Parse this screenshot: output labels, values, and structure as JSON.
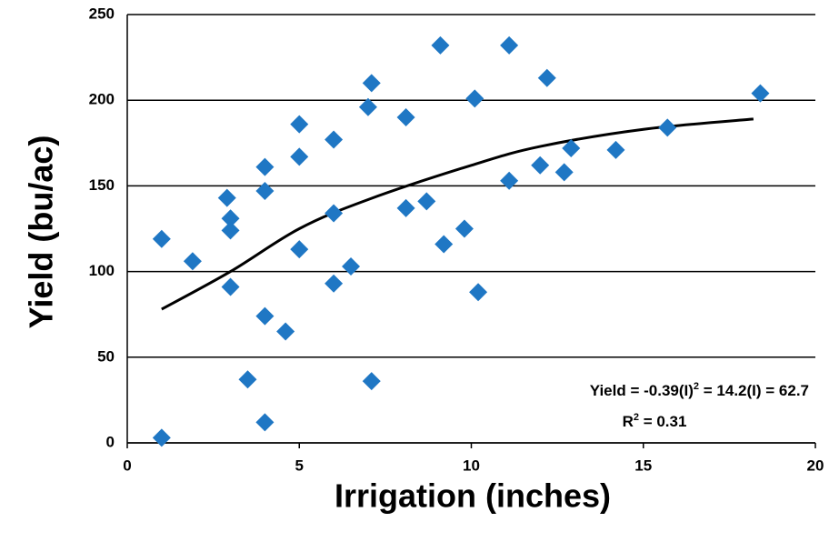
{
  "chart_data": {
    "type": "scatter",
    "x_label": "Irrigation (inches)",
    "y_label": "Yield (bu/ac)",
    "x": [
      1,
      1,
      1.9,
      2.9,
      3.0,
      3.0,
      3.0,
      3.5,
      4.0,
      4.0,
      4.0,
      4.0,
      4.6,
      5.0,
      5.0,
      5.0,
      6.0,
      6.0,
      6.0,
      6.5,
      7.1,
      7.0,
      7.1,
      8.1,
      8.1,
      8.7,
      9.1,
      9.2,
      9.8,
      10.1,
      10.2,
      11.1,
      11.1,
      12.0,
      12.2,
      12.7,
      12.9,
      14.2,
      15.7,
      18.4
    ],
    "series": [
      {
        "color": "#1f77c4",
        "values": [
          119,
          3,
          106,
          143,
          131,
          124,
          91,
          37,
          161,
          147,
          74,
          12,
          65,
          186,
          167,
          113,
          177,
          134,
          93,
          103,
          210,
          196,
          36,
          190,
          137,
          141,
          232,
          116,
          125,
          201,
          88,
          232,
          153,
          162,
          213,
          158,
          172,
          171,
          184,
          204
        ]
      }
    ],
    "trendline": {
      "color": "#000000",
      "x": [
        1,
        3,
        5,
        7,
        10,
        12,
        15,
        18.2
      ],
      "y": [
        78,
        100,
        125,
        142,
        162,
        173,
        183,
        189
      ]
    },
    "equation": [
      "Yield = -0.39(I)",
      "2",
      " = 14.2(I) = 62.7"
    ],
    "r_squared": [
      "R",
      "2",
      " = 0.31"
    ],
    "xlim": [
      0,
      20
    ],
    "xticks": [
      0,
      5,
      10,
      15,
      20
    ],
    "ylim": [
      0,
      250
    ],
    "yticks": [
      0,
      50,
      100,
      150,
      200,
      250
    ],
    "grid": true
  }
}
